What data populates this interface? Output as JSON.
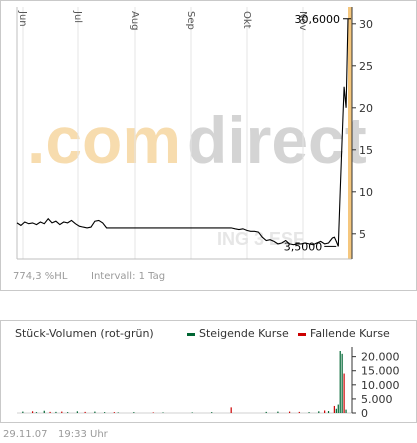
{
  "price_chart": {
    "watermark": ".comdirect",
    "watermark_colors": {
      "dot_com": "#f7dcae",
      "direct": "#d4d4d4"
    },
    "accent_color": "#f5c77e",
    "line_color": "#000000",
    "max_label": "30,6000",
    "min_label": "3,5000",
    "faint_label": "ING 3 ESF",
    "stats_label": "774,3 %HL",
    "interval_label": "Intervall: 1 Tag"
  },
  "volume_chart": {
    "title": "Stück-Volumen (rot-grün)",
    "legend_up": "Steigende Kurse",
    "legend_down": "Fallende Kurse",
    "up_color": "#006633",
    "down_color": "#cc0000"
  },
  "timestamp": {
    "date": "29.11.07",
    "time": "19:33 Uhr"
  },
  "chart_data": [
    {
      "type": "line",
      "x_labels": [
        "Jun",
        "Jul",
        "Aug",
        "Sep",
        "Okt",
        "Nov"
      ],
      "x": [
        0,
        2,
        4,
        6,
        8,
        10,
        12,
        14,
        16,
        18,
        20,
        22,
        24,
        26,
        28,
        30,
        32,
        34,
        36,
        38,
        40,
        42,
        44,
        46,
        48,
        50,
        52,
        54,
        56,
        58,
        60,
        62,
        64,
        66,
        68,
        70,
        72,
        74,
        76,
        78,
        80,
        82,
        84,
        86,
        88,
        90,
        92,
        94,
        96,
        98,
        100,
        102,
        104,
        106,
        108,
        110,
        112,
        114,
        116,
        118,
        120,
        122,
        124,
        126,
        128,
        130,
        132,
        134,
        136,
        138,
        140,
        142,
        144,
        146,
        148,
        150,
        152,
        154,
        156,
        158,
        160,
        162,
        163,
        164,
        165,
        166,
        167,
        168,
        169,
        170
      ],
      "values": [
        6.3,
        6.0,
        6.4,
        6.2,
        6.3,
        6.1,
        6.4,
        6.2,
        6.8,
        6.3,
        6.5,
        6.1,
        6.4,
        6.3,
        6.6,
        6.2,
        5.9,
        5.8,
        5.7,
        5.8,
        6.5,
        6.6,
        6.3,
        5.7,
        5.7,
        5.7,
        5.7,
        5.7,
        5.7,
        5.7,
        5.7,
        5.7,
        5.7,
        5.7,
        5.7,
        5.7,
        5.7,
        5.7,
        5.7,
        5.7,
        5.7,
        5.7,
        5.7,
        5.7,
        5.7,
        5.7,
        5.7,
        5.7,
        5.7,
        5.7,
        5.7,
        5.7,
        5.7,
        5.7,
        5.7,
        5.7,
        5.6,
        5.5,
        5.6,
        5.4,
        5.3,
        5.3,
        5.2,
        4.6,
        4.2,
        4.3,
        4.1,
        3.8,
        3.9,
        4.2,
        3.8,
        3.7,
        3.8,
        3.8,
        3.9,
        3.8,
        3.7,
        3.9,
        4.1,
        3.8,
        3.9,
        4.5,
        4.6,
        4.1,
        3.5,
        10.0,
        16.5,
        22.5,
        20.0,
        30.6
      ],
      "ylim": [
        2,
        32
      ],
      "yticks": [
        5,
        10,
        15,
        20,
        25,
        30
      ],
      "ytick_labels": [
        "5",
        "10",
        "15",
        "20",
        "25",
        "30"
      ],
      "max_value": 30.6,
      "min_value": 3.5
    },
    {
      "type": "bar",
      "ylim": [
        0,
        22000
      ],
      "yticks": [
        0,
        5000,
        10000,
        15000,
        20000
      ],
      "ytick_labels": [
        "0",
        "5.000",
        "10.000",
        "15.000",
        "20.000"
      ],
      "series": [
        {
          "name": "Steigende Kurse",
          "x": [
            3,
            10,
            14,
            20,
            26,
            31,
            40,
            45,
            52,
            60,
            75,
            90,
            100,
            128,
            134,
            150,
            155,
            160,
            164,
            165,
            166,
            167,
            169
          ],
          "values": [
            500,
            300,
            800,
            400,
            300,
            600,
            500,
            300,
            200,
            300,
            200,
            200,
            300,
            400,
            500,
            300,
            600,
            700,
            1500,
            3000,
            22000,
            21000,
            1200
          ]
        },
        {
          "name": "Fallende Kurse",
          "x": [
            8,
            17,
            23,
            35,
            50,
            70,
            110,
            140,
            145,
            158,
            163,
            168
          ],
          "values": [
            600,
            400,
            500,
            400,
            300,
            200,
            2000,
            500,
            400,
            900,
            2500,
            14000
          ]
        }
      ]
    }
  ]
}
